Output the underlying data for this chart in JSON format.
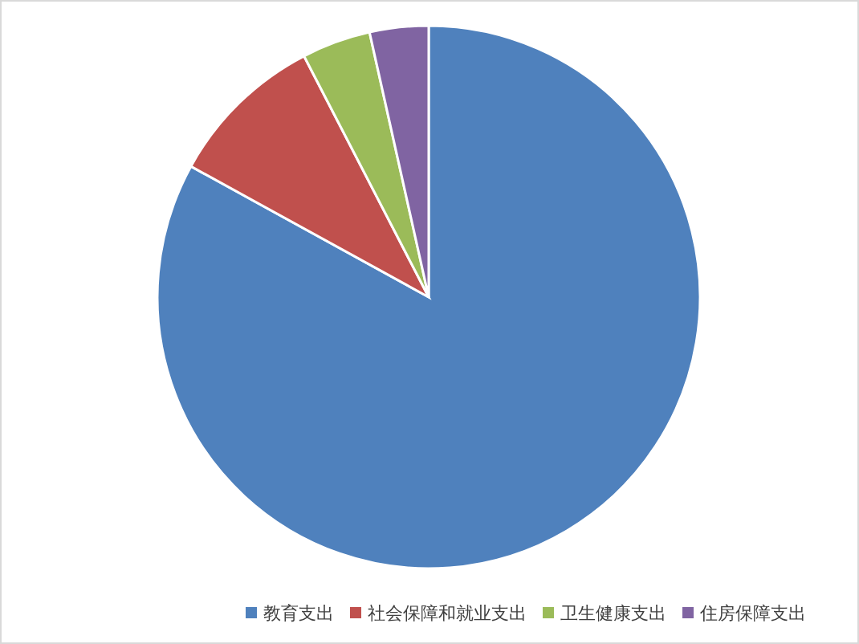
{
  "chart_data": {
    "type": "pie",
    "categories": [
      "教育支出",
      "社会保障和就业支出",
      "卫生健康支出",
      "住房保障支出"
    ],
    "values": [
      83.0,
      9.4,
      4.1,
      3.5
    ],
    "colors": [
      "#4f81bd",
      "#c0504d",
      "#9bbb59",
      "#8064a2"
    ],
    "legend": "bottom"
  }
}
